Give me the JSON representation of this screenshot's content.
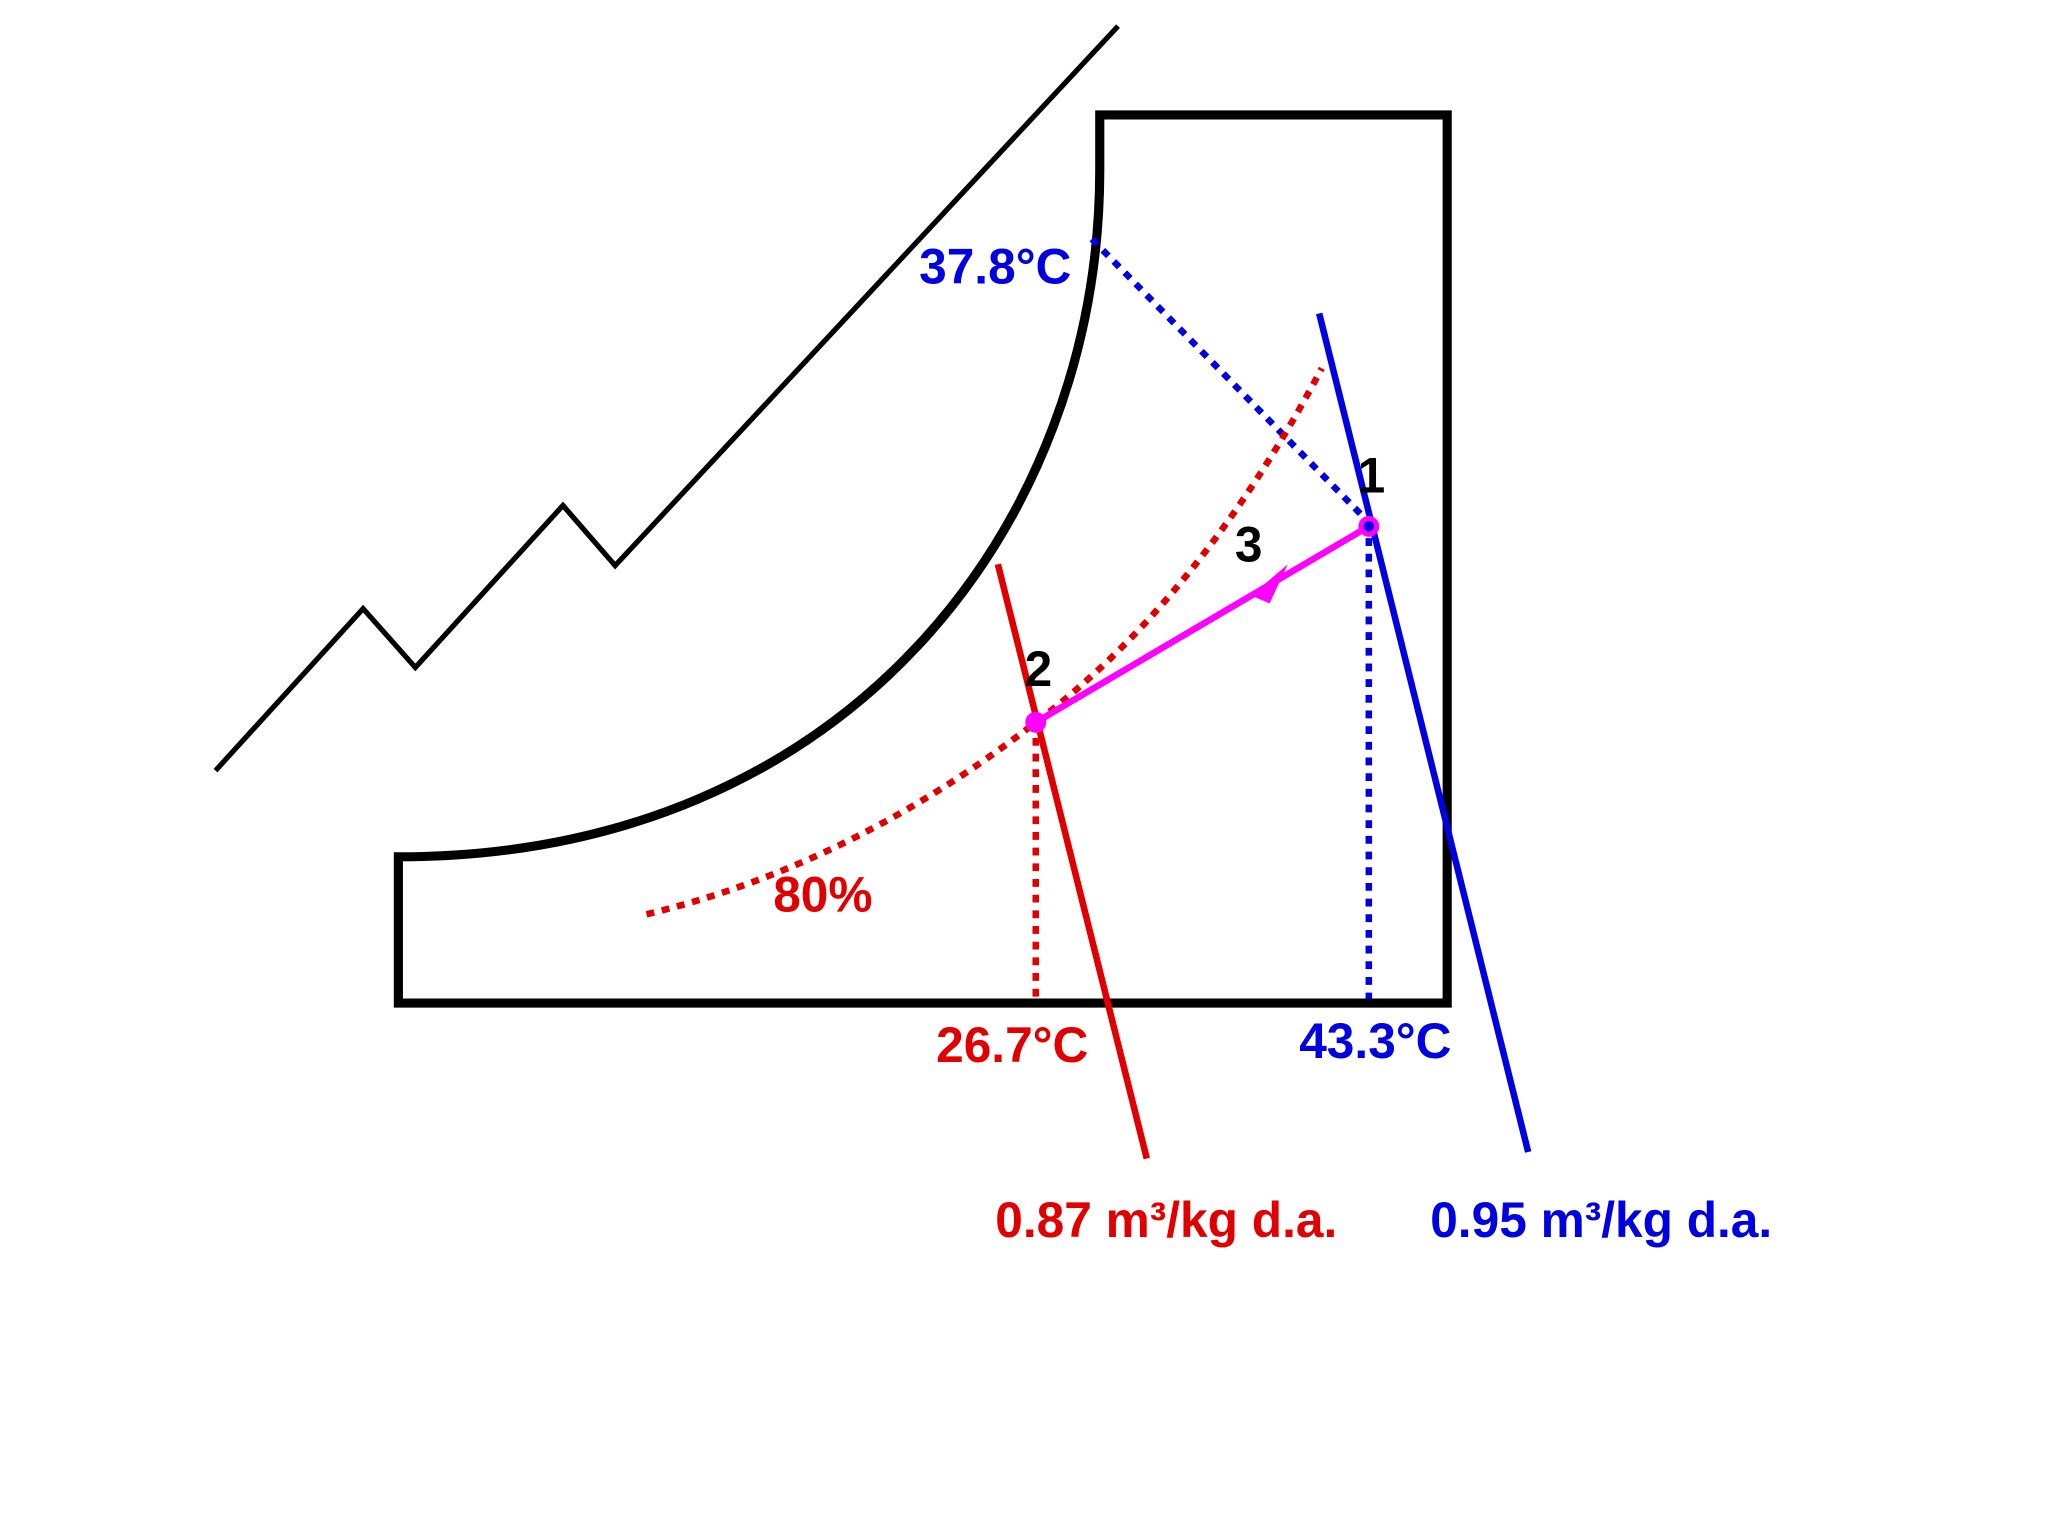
{
  "labels": {
    "saturation_temp": "37.8°C",
    "rh": "80%",
    "dry_bulb_2": "26.7°C",
    "dry_bulb_1": "43.3°C",
    "volume_2": "0.87 m³/kg d.a.",
    "volume_1": "0.95 m³/kg d.a."
  },
  "points": [
    {
      "label": "1"
    },
    {
      "label": "2"
    },
    {
      "label": "3"
    }
  ]
}
